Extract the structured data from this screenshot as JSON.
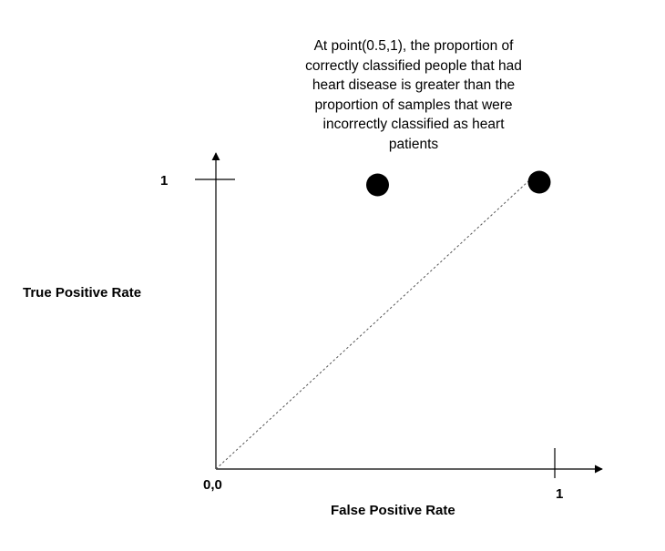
{
  "annotation": {
    "lines": [
      "At point(0.5,1), the proportion of",
      "correctly classified people that had",
      "heart disease is greater than the",
      "proportion of samples that were",
      "incorrectly classified as heart",
      "patients"
    ]
  },
  "axes": {
    "xlabel": "False Positive Rate",
    "ylabel": "True Positive Rate",
    "x_tick": "1",
    "y_tick": "1",
    "origin": "0,0"
  },
  "points": [
    {
      "x": 0.5,
      "y": 1
    },
    {
      "x": 1,
      "y": 1
    }
  ],
  "colors": {
    "ink": "#000000",
    "point": "#000000",
    "diagonal": "#555555"
  }
}
